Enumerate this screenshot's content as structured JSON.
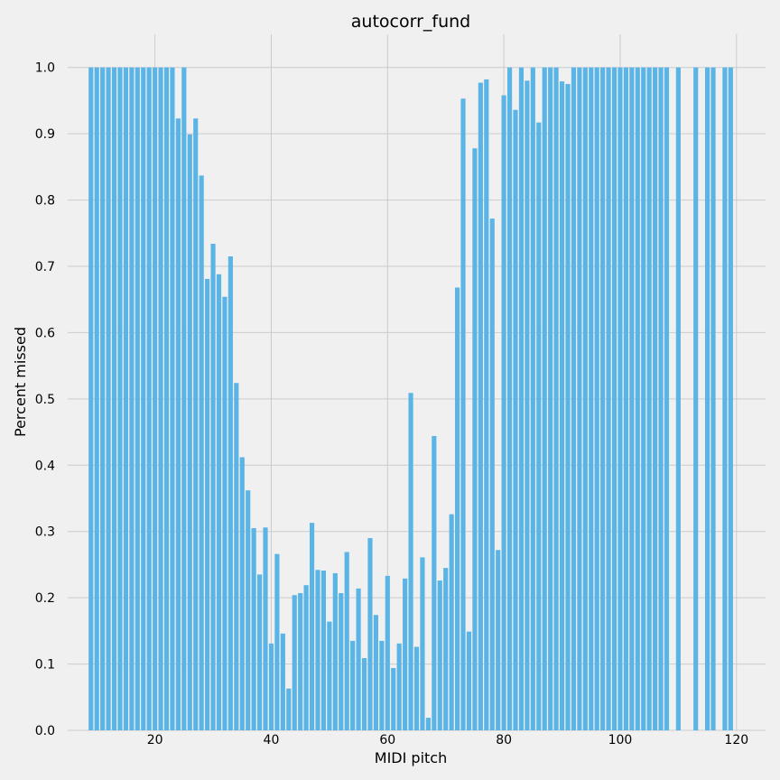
{
  "chart_data": {
    "type": "bar",
    "title": "autocorr_fund",
    "xlabel": "MIDI pitch",
    "ylabel": "Percent missed",
    "xlim": [
      5,
      125
    ],
    "ylim": [
      0,
      1.05
    ],
    "xticks": [
      20,
      40,
      60,
      80,
      100,
      120
    ],
    "yticks": [
      0.0,
      0.1,
      0.2,
      0.3,
      0.4,
      0.5,
      0.6,
      0.7,
      0.8,
      0.9,
      1.0
    ],
    "grid": true,
    "bar_color": "#5ab4e5",
    "x": [
      9,
      10,
      11,
      12,
      13,
      14,
      15,
      16,
      17,
      18,
      19,
      20,
      21,
      22,
      23,
      24,
      25,
      26,
      27,
      28,
      29,
      30,
      31,
      32,
      33,
      34,
      35,
      36,
      37,
      38,
      39,
      40,
      41,
      42,
      43,
      44,
      45,
      46,
      47,
      48,
      49,
      50,
      51,
      52,
      53,
      54,
      55,
      56,
      57,
      58,
      59,
      60,
      61,
      62,
      63,
      64,
      65,
      66,
      67,
      68,
      69,
      70,
      71,
      72,
      73,
      74,
      75,
      76,
      77,
      78,
      79,
      80,
      81,
      82,
      83,
      84,
      85,
      86,
      87,
      88,
      89,
      90,
      91,
      92,
      93,
      94,
      95,
      96,
      97,
      98,
      99,
      100,
      101,
      102,
      103,
      104,
      105,
      106,
      107,
      108,
      110,
      113,
      115,
      116,
      118,
      119
    ],
    "values": [
      1.0,
      1.0,
      1.0,
      1.0,
      1.0,
      1.0,
      1.0,
      1.0,
      1.0,
      1.0,
      1.0,
      1.0,
      1.0,
      1.0,
      1.0,
      0.923,
      1.0,
      0.899,
      0.923,
      0.837,
      0.681,
      0.734,
      0.688,
      0.654,
      0.715,
      0.524,
      0.412,
      0.362,
      0.305,
      0.235,
      0.306,
      0.131,
      0.266,
      0.146,
      0.063,
      0.204,
      0.207,
      0.219,
      0.313,
      0.242,
      0.241,
      0.164,
      0.237,
      0.207,
      0.269,
      0.135,
      0.214,
      0.109,
      0.29,
      0.174,
      0.135,
      0.233,
      0.094,
      0.131,
      0.229,
      0.509,
      0.126,
      0.261,
      0.019,
      0.444,
      0.226,
      0.245,
      0.326,
      0.668,
      0.953,
      0.149,
      0.878,
      0.977,
      0.982,
      0.772,
      0.272,
      0.958,
      1.0,
      0.936,
      1.0,
      0.98,
      1.0,
      0.917,
      1.0,
      1.0,
      1.0,
      0.979,
      0.975,
      1.0,
      1.0,
      1.0,
      1.0,
      1.0,
      1.0,
      1.0,
      1.0,
      1.0,
      1.0,
      1.0,
      1.0,
      1.0,
      1.0,
      1.0,
      1.0,
      1.0,
      1.0,
      1.0,
      1.0,
      1.0,
      1.0,
      1.0
    ]
  }
}
